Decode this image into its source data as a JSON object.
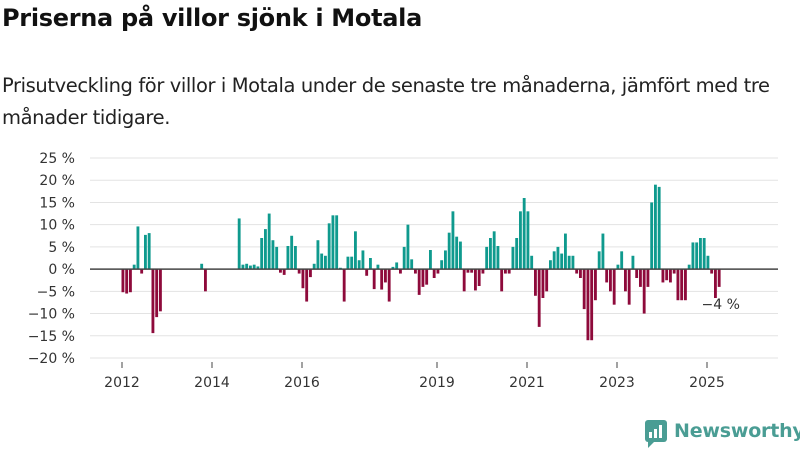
{
  "header": {
    "title": "Priserna på villor sjönk i Motala",
    "subtitle": "Prisutveckling för villor i Motala under de senaste tre månaderna, jämfört med tre månader tidigare."
  },
  "colors": {
    "positive": "#0f9a8e",
    "negative": "#8e0a3b",
    "grid": "#e3e3e3",
    "zero": "#444444",
    "brand": "#4a9d94"
  },
  "branding": {
    "logo_text": "Newsworthy",
    "logo_icon": "bar-chart-speech-bubble-icon"
  },
  "chart_data": {
    "type": "bar",
    "title": "Priserna på villor sjönk i Motala",
    "xlabel": "",
    "ylabel": "",
    "y_unit": "%",
    "ylim": [
      -20,
      25
    ],
    "yticks": [
      25,
      20,
      15,
      10,
      5,
      0,
      -5,
      -10,
      -15,
      -20
    ],
    "ytick_labels": [
      "25 %",
      "20 %",
      "15 %",
      "10 %",
      "5 %",
      "0 %",
      "−5 %",
      "−10 %",
      "−15 %",
      "−20 %"
    ],
    "xticks": [
      "2012",
      "2014",
      "2016",
      "2019",
      "2021",
      "2023",
      "2025"
    ],
    "grid": true,
    "start": "2012-01",
    "frequency": "monthly",
    "annotation": {
      "label": "−4 %",
      "target": "last"
    },
    "values": [
      -5.2,
      -5.5,
      -5.2,
      1.0,
      9.6,
      -1.0,
      7.7,
      8.1,
      -14.4,
      -10.8,
      -9.5,
      null,
      null,
      null,
      null,
      null,
      null,
      null,
      null,
      null,
      null,
      1.2,
      -5.0,
      null,
      null,
      null,
      null,
      null,
      null,
      null,
      null,
      11.4,
      1.0,
      1.2,
      0.8,
      1.0,
      0.6,
      7.0,
      9.0,
      12.5,
      6.5,
      5.0,
      -0.8,
      -1.3,
      5.2,
      7.5,
      5.2,
      -1.0,
      -4.3,
      -7.3,
      -1.8,
      1.2,
      6.5,
      3.5,
      3.0,
      10.3,
      12.1,
      12.1,
      0.3,
      -7.3,
      2.8,
      2.8,
      8.5,
      2.0,
      4.2,
      -1.5,
      2.5,
      -4.5,
      1.0,
      -4.6,
      -3.0,
      -7.3,
      0.5,
      1.5,
      -1.0,
      5.0,
      10.0,
      2.2,
      -1.0,
      -5.8,
      -4.0,
      -3.5,
      4.3,
      -2.0,
      -1.0,
      2.0,
      4.2,
      8.2,
      13.0,
      7.3,
      6.2,
      -5.0,
      -0.8,
      -0.8,
      -4.8,
      -3.8,
      -1.0,
      5.0,
      7.0,
      8.5,
      5.2,
      -5.0,
      -1.0,
      -1.0,
      5.0,
      7.0,
      13.0,
      16.0,
      13.0,
      3.0,
      -6.0,
      -13.0,
      -6.5,
      -5.0,
      2.0,
      4.0,
      5.0,
      3.5,
      8.0,
      3.0,
      3.0,
      -1.0,
      -2.0,
      -9.0,
      -16.0,
      -16.0,
      -7.0,
      4.0,
      8.0,
      -3.0,
      -5.0,
      -8.0,
      1.0,
      4.0,
      -5.0,
      -8.0,
      3.0,
      -2.0,
      -4.0,
      -10.0,
      -4.0,
      15.0,
      19.0,
      18.5,
      -3.0,
      -2.5,
      -3.0,
      -1.0,
      -7.0,
      -7.0,
      -7.0,
      1.0,
      6.0,
      6.0,
      7.0,
      7.0,
      3.0,
      -1.0,
      -6.5,
      -4.0
    ]
  }
}
